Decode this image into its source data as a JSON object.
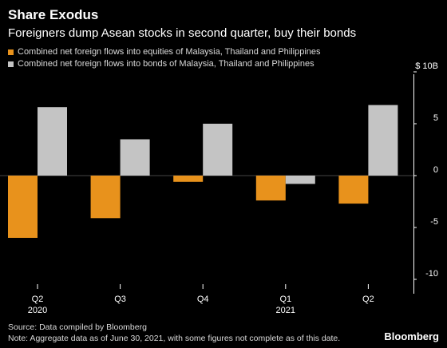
{
  "header": {
    "title": "Share Exodus",
    "subtitle": "Foreigners dump Asean stocks in second quarter, buy their bonds"
  },
  "colors": {
    "equities": "#e8921c",
    "bonds": "#c4c4c4",
    "background": "#000000"
  },
  "chart_data": {
    "type": "bar",
    "categories": [
      "Q2",
      "Q3",
      "Q4",
      "Q1",
      "Q2"
    ],
    "category_sublabels": [
      "2020",
      "",
      "",
      "2021",
      ""
    ],
    "series": [
      {
        "name": "Combined net foreign flows into equities of Malaysia, Thailand and Philippines",
        "values": [
          -6.0,
          -4.1,
          -0.6,
          -2.4,
          -2.7
        ]
      },
      {
        "name": "Combined net foreign flows into bonds of Malaysia, Thailand and Philippines",
        "values": [
          6.6,
          3.5,
          5.0,
          -0.8,
          6.8
        ]
      }
    ],
    "y_ticks": [
      {
        "value": 10,
        "label": "$ 10B"
      },
      {
        "value": 5,
        "label": "5"
      },
      {
        "value": 0,
        "label": "0"
      },
      {
        "value": -5,
        "label": "-5"
      },
      {
        "value": -10,
        "label": "-10"
      }
    ],
    "ylim": [
      -10,
      10
    ],
    "legend_position": "top-left",
    "grid": false
  },
  "footer": {
    "source": "Source: Data compiled by Bloomberg",
    "note": "Note: Aggregate data as of June 30, 2021, with some figures not complete as of this date.",
    "brand": "Bloomberg"
  }
}
